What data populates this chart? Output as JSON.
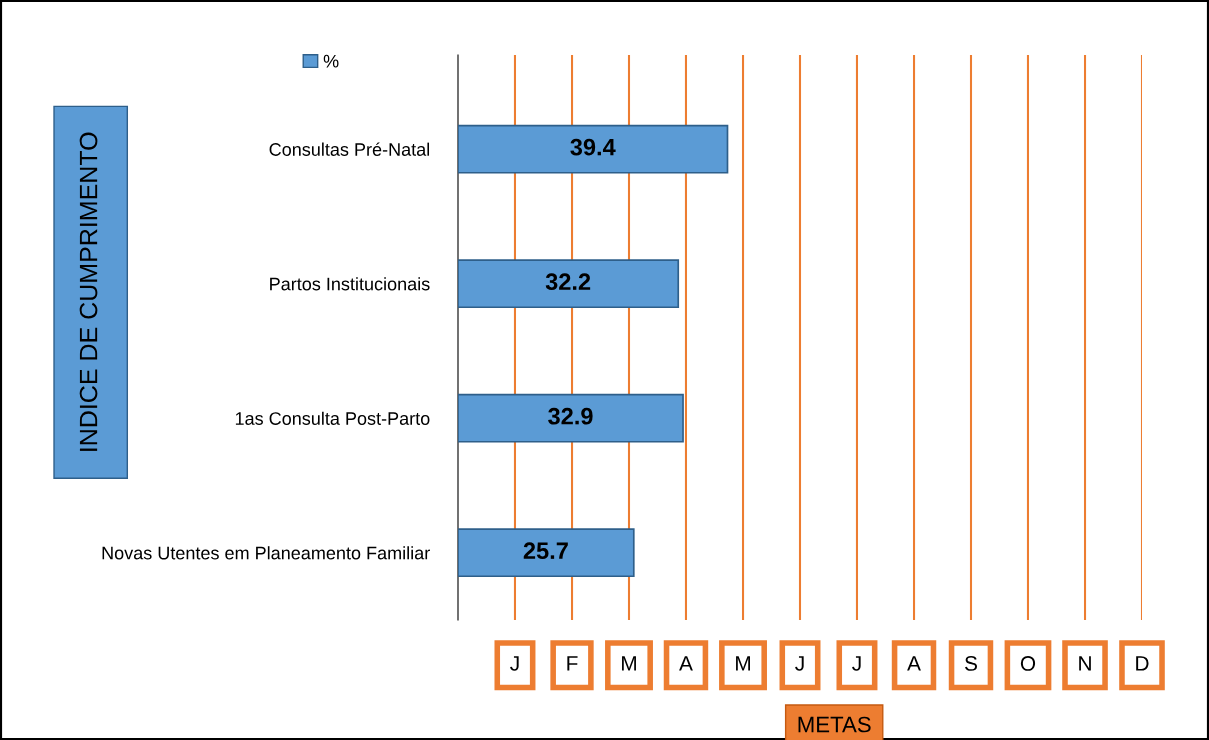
{
  "chart_data": {
    "type": "bar",
    "orientation": "horizontal",
    "categories": [
      "Consultas Pré-Natal",
      "Partos Institucionais",
      "1as Consulta Post-Parto",
      "Novas Utentes em Planeamento Familiar"
    ],
    "series": [
      {
        "name": "%",
        "color": "#5b9bd5",
        "values": [
          39.4,
          32.2,
          32.9,
          25.7
        ]
      }
    ],
    "data_labels": true,
    "xlabel": "METAS",
    "ylabel": "INDICE DE CUMPRIMENTO",
    "xlim": [
      0,
      100
    ],
    "ref_lines": [
      {
        "axis": "x",
        "value": 8.33,
        "label": "J",
        "color": "#ed7d31"
      },
      {
        "axis": "x",
        "value": 16.67,
        "label": "F",
        "color": "#ed7d31"
      },
      {
        "axis": "x",
        "value": 25,
        "label": "M",
        "color": "#ed7d31"
      },
      {
        "axis": "x",
        "value": 33.33,
        "label": "A",
        "color": "#ed7d31"
      },
      {
        "axis": "x",
        "value": 41.67,
        "label": "M",
        "color": "#ed7d31"
      },
      {
        "axis": "x",
        "value": 50,
        "label": "J",
        "color": "#ed7d31"
      },
      {
        "axis": "x",
        "value": 58.33,
        "label": "J",
        "color": "#ed7d31"
      },
      {
        "axis": "x",
        "value": 66.67,
        "label": "A",
        "color": "#ed7d31"
      },
      {
        "axis": "x",
        "value": 75,
        "label": "S",
        "color": "#ed7d31"
      },
      {
        "axis": "x",
        "value": 83.33,
        "label": "O",
        "color": "#ed7d31"
      },
      {
        "axis": "x",
        "value": 91.67,
        "label": "N",
        "color": "#ed7d31"
      },
      {
        "axis": "x",
        "value": 100,
        "label": "D",
        "color": "#ed7d31"
      }
    ],
    "legend": "top left"
  }
}
